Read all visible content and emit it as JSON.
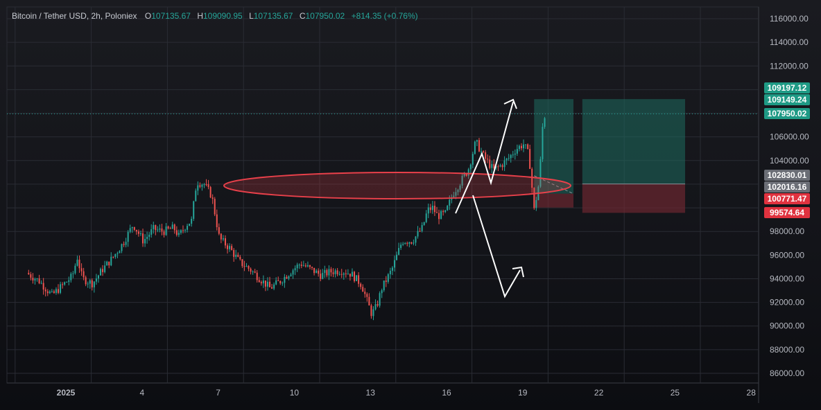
{
  "header": {
    "symbol": "Bitcoin / Tether USD, 2h, Poloniex",
    "open_key": "O",
    "open": "107135.67",
    "high_key": "H",
    "high": "109090.95",
    "low_key": "L",
    "low": "107135.67",
    "close_key": "C",
    "close": "107950.02",
    "change": "+814.35 (+0.76%)"
  },
  "colors": {
    "background": "#131419",
    "up": "#26a69a",
    "down": "#ef5350",
    "grid": "#2a2c34",
    "ellipse_stroke": "#e8404a",
    "target_zone": "#1d6b5e",
    "stop_zone": "#7a2a33",
    "arrow": "#ffffff"
  },
  "price_axis": {
    "labels": [
      "116000.00",
      "114000.00",
      "112000.00",
      "106000.00",
      "104000.00",
      "98000.00",
      "96000.00",
      "94000.00",
      "92000.00",
      "90000.00",
      "88000.00",
      "86000.00"
    ]
  },
  "price_tags": [
    {
      "name": "target-price-tag",
      "text": "109197.12",
      "color": "#1f9a85",
      "price": 109197.12
    },
    {
      "name": "entry-high-price-tag",
      "text": "109149.24",
      "color": "#1f9a85",
      "price": 109149.24
    },
    {
      "name": "last-price-tag",
      "text": "107950.02",
      "color": "#1f9a85",
      "price": 107950.02
    },
    {
      "name": "entry-price-tag",
      "text": "102830.01",
      "color": "#6b6e76",
      "price": 102830.01
    },
    {
      "name": "entry2-price-tag",
      "text": "102016.16",
      "color": "#6b6e76",
      "price": 102016.16
    },
    {
      "name": "stop-price-tag",
      "text": "100771.47",
      "color": "#e0323f",
      "price": 100771.47
    },
    {
      "name": "stop2-price-tag",
      "text": "99574.64",
      "color": "#e0323f",
      "price": 99574.64
    }
  ],
  "time_axis": {
    "labels": [
      "2025",
      "4",
      "7",
      "10",
      "13",
      "16",
      "19",
      "22",
      "25",
      "28"
    ]
  },
  "chart_data": {
    "type": "candlestick",
    "symbol": "Bitcoin / Tether USD",
    "interval": "2h",
    "exchange": "Poloniex",
    "y_range": [
      85000,
      117300
    ],
    "last_price": 107950.02,
    "price_path": [
      [
        0,
        94500
      ],
      [
        0.5,
        93800
      ],
      [
        1.0,
        92600
      ],
      [
        1.3,
        93200
      ],
      [
        1.8,
        94200
      ],
      [
        2.0,
        95800
      ],
      [
        2.2,
        94000
      ],
      [
        2.6,
        93600
      ],
      [
        3.0,
        94800
      ],
      [
        3.4,
        95800
      ],
      [
        3.8,
        97000
      ],
      [
        4.2,
        98600
      ],
      [
        4.6,
        97200
      ],
      [
        5.0,
        98200
      ],
      [
        5.4,
        98000
      ],
      [
        5.8,
        98300
      ],
      [
        6.0,
        97600
      ],
      [
        6.3,
        98600
      ],
      [
        6.5,
        98900
      ],
      [
        6.7,
        102200
      ],
      [
        7.0,
        102000
      ],
      [
        7.3,
        101000
      ],
      [
        7.6,
        97400
      ],
      [
        8.0,
        96600
      ],
      [
        8.4,
        95400
      ],
      [
        8.8,
        94800
      ],
      [
        9.2,
        94000
      ],
      [
        9.6,
        93200
      ],
      [
        10.0,
        93800
      ],
      [
        10.4,
        94600
      ],
      [
        10.8,
        95300
      ],
      [
        11.2,
        94800
      ],
      [
        11.6,
        94300
      ],
      [
        12.0,
        94600
      ],
      [
        12.4,
        94700
      ],
      [
        12.8,
        94400
      ],
      [
        13.2,
        93500
      ],
      [
        13.6,
        91000
      ],
      [
        13.8,
        91700
      ],
      [
        14.0,
        93200
      ],
      [
        14.4,
        94800
      ],
      [
        14.8,
        97200
      ],
      [
        15.2,
        97200
      ],
      [
        15.6,
        98300
      ],
      [
        15.8,
        99800
      ],
      [
        16.0,
        100000
      ],
      [
        16.2,
        99300
      ],
      [
        16.5,
        99500
      ],
      [
        16.8,
        101200
      ],
      [
        17.1,
        102200
      ],
      [
        17.4,
        103200
      ],
      [
        17.7,
        105600
      ],
      [
        18.0,
        104400
      ],
      [
        18.4,
        103200
      ],
      [
        18.7,
        103600
      ],
      [
        19.0,
        104200
      ],
      [
        19.3,
        105000
      ],
      [
        19.6,
        105400
      ],
      [
        19.8,
        104400
      ],
      [
        20.0,
        99800
      ],
      [
        20.2,
        102200
      ],
      [
        20.35,
        107400
      ],
      [
        20.45,
        107950
      ]
    ],
    "position_tool": {
      "entry": 102016.16,
      "target": 109197.12,
      "stop": 99574.64
    }
  }
}
